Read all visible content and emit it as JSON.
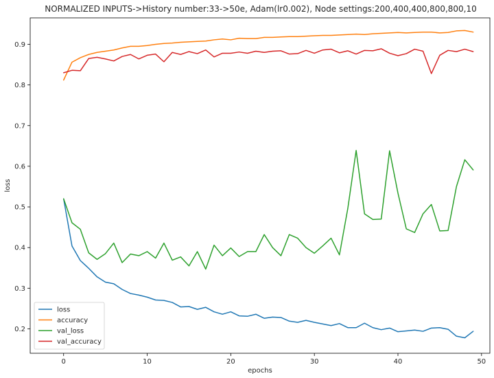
{
  "chart_data": {
    "type": "line",
    "title": "NORMALIZED INPUTS->History number:33->50e, Adam(lr0.002), Node settings:200,400,400,800,800,10",
    "xlabel": "epochs",
    "ylabel": "loss",
    "xlim": [
      -4,
      51
    ],
    "ylim": [
      0.14,
      0.965
    ],
    "xticks": [
      0,
      10,
      20,
      30,
      40,
      50
    ],
    "yticks": [
      0.2,
      0.3,
      0.4,
      0.5,
      0.6,
      0.7,
      0.8,
      0.9
    ],
    "xtick_labels": [
      "0",
      "10",
      "20",
      "30",
      "40",
      "50"
    ],
    "ytick_labels": [
      "0.2",
      "0.3",
      "0.4",
      "0.5",
      "0.6",
      "0.7",
      "0.8",
      "0.9"
    ],
    "legend_position": "lower-left",
    "grid": false,
    "series": [
      {
        "name": "loss",
        "color": "#1f77b4",
        "values": [
          0.52,
          0.404,
          0.368,
          0.349,
          0.328,
          0.315,
          0.311,
          0.297,
          0.287,
          0.283,
          0.278,
          0.271,
          0.27,
          0.265,
          0.254,
          0.255,
          0.248,
          0.253,
          0.242,
          0.236,
          0.242,
          0.232,
          0.231,
          0.236,
          0.226,
          0.229,
          0.228,
          0.219,
          0.216,
          0.221,
          0.216,
          0.212,
          0.208,
          0.213,
          0.203,
          0.203,
          0.214,
          0.203,
          0.198,
          0.202,
          0.193,
          0.195,
          0.197,
          0.194,
          0.202,
          0.203,
          0.199,
          0.182,
          0.178,
          0.194
        ]
      },
      {
        "name": "accuracy",
        "color": "#ff7f0e",
        "values": [
          0.812,
          0.856,
          0.867,
          0.875,
          0.88,
          0.883,
          0.886,
          0.891,
          0.895,
          0.895,
          0.897,
          0.9,
          0.902,
          0.903,
          0.905,
          0.906,
          0.907,
          0.908,
          0.911,
          0.913,
          0.911,
          0.915,
          0.914,
          0.914,
          0.917,
          0.917,
          0.918,
          0.919,
          0.919,
          0.92,
          0.921,
          0.922,
          0.922,
          0.923,
          0.924,
          0.925,
          0.924,
          0.926,
          0.927,
          0.928,
          0.929,
          0.928,
          0.929,
          0.93,
          0.93,
          0.928,
          0.929,
          0.933,
          0.934,
          0.93
        ]
      },
      {
        "name": "val_loss",
        "color": "#2ca02c",
        "values": [
          0.52,
          0.461,
          0.445,
          0.387,
          0.371,
          0.385,
          0.411,
          0.363,
          0.384,
          0.38,
          0.39,
          0.374,
          0.411,
          0.369,
          0.377,
          0.355,
          0.39,
          0.347,
          0.406,
          0.38,
          0.399,
          0.378,
          0.39,
          0.39,
          0.432,
          0.4,
          0.38,
          0.432,
          0.423,
          0.4,
          0.386,
          0.404,
          0.423,
          0.382,
          0.496,
          0.639,
          0.483,
          0.469,
          0.47,
          0.638,
          0.534,
          0.446,
          0.437,
          0.483,
          0.506,
          0.441,
          0.442,
          0.55,
          0.616,
          0.591
        ]
      },
      {
        "name": "val_accuracy",
        "color": "#d62728",
        "values": [
          0.83,
          0.836,
          0.835,
          0.865,
          0.868,
          0.864,
          0.859,
          0.87,
          0.875,
          0.864,
          0.873,
          0.876,
          0.857,
          0.88,
          0.875,
          0.882,
          0.877,
          0.886,
          0.869,
          0.878,
          0.878,
          0.881,
          0.878,
          0.883,
          0.88,
          0.883,
          0.884,
          0.876,
          0.877,
          0.885,
          0.878,
          0.886,
          0.888,
          0.879,
          0.884,
          0.876,
          0.885,
          0.884,
          0.889,
          0.878,
          0.872,
          0.877,
          0.888,
          0.883,
          0.828,
          0.873,
          0.885,
          0.882,
          0.888,
          0.882
        ]
      }
    ]
  }
}
